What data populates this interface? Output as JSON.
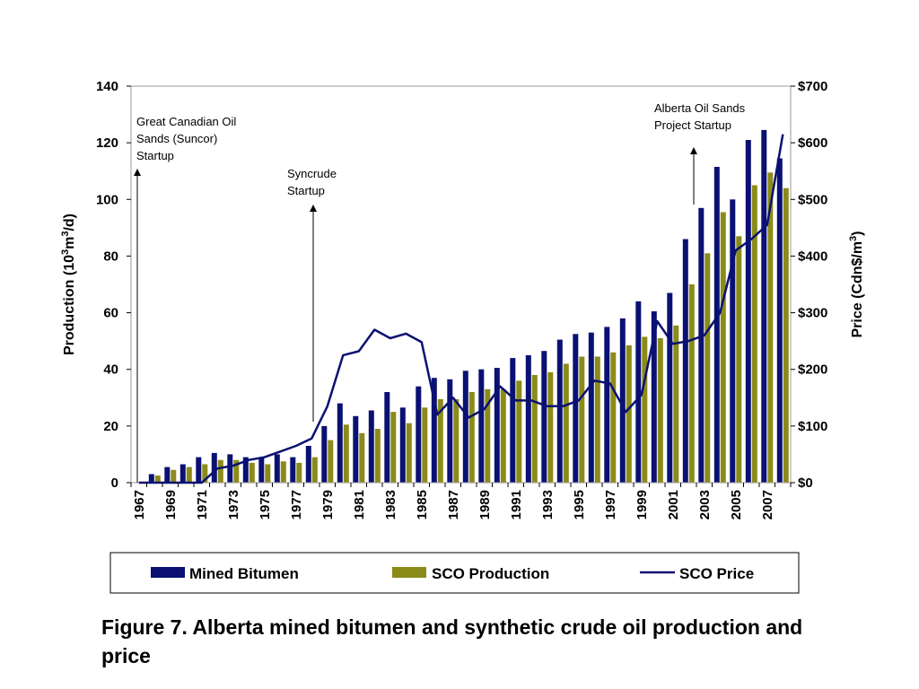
{
  "caption": "Figure 7. Alberta mined bitumen and synthetic crude oil production and price",
  "chart_data": {
    "type": "bar",
    "x": [
      1967,
      1968,
      1969,
      1970,
      1971,
      1972,
      1973,
      1974,
      1975,
      1976,
      1977,
      1978,
      1979,
      1980,
      1981,
      1982,
      1983,
      1984,
      1985,
      1986,
      1987,
      1988,
      1989,
      1990,
      1991,
      1992,
      1993,
      1994,
      1995,
      1996,
      1997,
      1998,
      1999,
      2000,
      2001,
      2002,
      2003,
      2004,
      2005,
      2006,
      2007,
      2008
    ],
    "x_tick_labels": [
      "1967",
      "1969",
      "1971",
      "1973",
      "1975",
      "1977",
      "1979",
      "1981",
      "1983",
      "1985",
      "1987",
      "1989",
      "1991",
      "1993",
      "1995",
      "1997",
      "1999",
      "2001",
      "2003",
      "2005",
      "2007"
    ],
    "ylabel": "Production (10³m³/d)",
    "ylabel_parts": {
      "pre": "Production (10",
      "sup1": "3",
      "mid": "m",
      "sup2": "3",
      "post": "/d)"
    },
    "ylim": [
      0,
      140
    ],
    "yticks": [
      "0",
      "20",
      "40",
      "60",
      "80",
      "100",
      "120",
      "140"
    ],
    "y2label": "Price (Cdn$/m³)",
    "y2label_parts": {
      "pre": "Price (Cdn$/m",
      "sup": "3",
      "post": ")"
    },
    "y2lim": [
      0,
      700
    ],
    "y2ticks": [
      "$0",
      "$100",
      "$200",
      "$300",
      "$400",
      "$500",
      "$600",
      "$700"
    ],
    "series": [
      {
        "name": "Mined Bitumen",
        "kind": "bar",
        "axis": "left",
        "color": "#0a1172",
        "values": [
          0,
          3,
          5.5,
          6.5,
          9,
          10.5,
          10,
          9,
          9,
          10,
          9,
          13,
          20,
          28,
          23.5,
          25.5,
          32,
          26.5,
          34,
          37,
          36.5,
          39.5,
          40,
          40.5,
          44,
          45,
          46.5,
          50.5,
          52.5,
          53,
          55,
          58,
          64,
          60.5,
          67,
          86,
          97,
          111.5,
          100,
          121,
          124.5,
          114.5
        ]
      },
      {
        "name": "SCO Production",
        "kind": "bar",
        "axis": "left",
        "color": "#8b8b1a",
        "values": [
          0,
          2.5,
          4.5,
          5.5,
          6.5,
          8,
          8,
          7,
          6.5,
          7.5,
          7,
          9,
          15,
          20.5,
          17.5,
          19,
          25,
          21,
          26.5,
          29.5,
          29.5,
          32,
          33,
          33,
          36,
          38,
          39,
          42,
          44.5,
          44.5,
          46,
          48.5,
          51.5,
          51,
          55.5,
          70,
          81,
          95.5,
          87,
          105,
          109.5,
          104
        ]
      },
      {
        "name": "SCO Price",
        "kind": "line",
        "axis": "right",
        "color": "#0a1172",
        "values": [
          0,
          0,
          0,
          0,
          0,
          25,
          30,
          40,
          45,
          55,
          65,
          78,
          135,
          225,
          232,
          270,
          255,
          263,
          248,
          120,
          150,
          115,
          130,
          170,
          145,
          145,
          135,
          135,
          145,
          180,
          175,
          125,
          155,
          285,
          245,
          250,
          260,
          300,
          410,
          430,
          455,
          615
        ]
      }
    ],
    "annotations": [
      {
        "lines": [
          "Great Canadian Oil",
          "Sands (Suncor)",
          "Startup"
        ],
        "year": 1967
      },
      {
        "lines": [
          "Syncrude",
          "Startup"
        ],
        "year": 1978
      },
      {
        "lines": [
          "Alberta Oil Sands",
          "Project Startup"
        ],
        "year": 2002.5
      }
    ],
    "legend": {
      "placement": "bottom",
      "items": [
        {
          "label": "Mined Bitumen",
          "symbol": "bar",
          "color": "#0a1172"
        },
        {
          "label": "SCO Production",
          "symbol": "bar",
          "color": "#8b8b1a"
        },
        {
          "label": "SCO Price",
          "symbol": "line",
          "color": "#0a1172"
        }
      ]
    },
    "grid": false
  }
}
